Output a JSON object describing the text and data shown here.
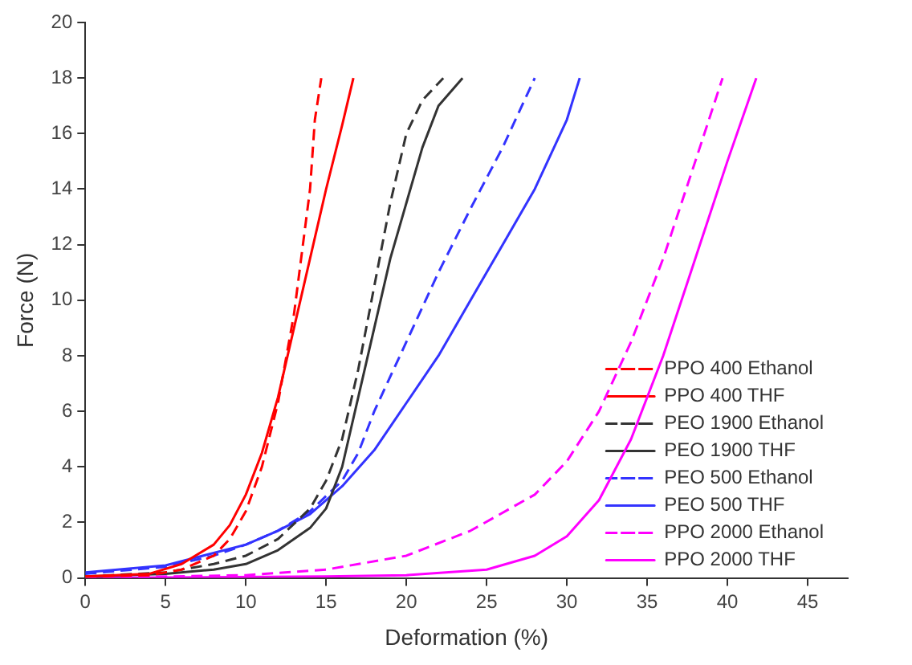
{
  "chart_data": {
    "type": "line",
    "xlabel": "Deformation (%)",
    "ylabel": "Force (N)",
    "xlim": [
      0,
      47.5
    ],
    "xticks": [
      0,
      5,
      10,
      15,
      20,
      25,
      30,
      35,
      40,
      45
    ],
    "ylim": [
      0,
      20
    ],
    "yticks": [
      0,
      2,
      4,
      6,
      8,
      10,
      12,
      14,
      16,
      18,
      20
    ],
    "grid": false,
    "legend": "bottom right",
    "marker": "none",
    "series": [
      {
        "name": "PPO 400 Ethanol",
        "color": "#ff0000",
        "line_style": "dashed",
        "x": [
          0,
          4,
          6,
          8,
          9,
          10,
          11,
          12,
          13,
          14,
          14.3,
          14.7
        ],
        "values": [
          0.05,
          0.1,
          0.3,
          0.8,
          1.4,
          2.4,
          4,
          6.3,
          9.5,
          14,
          16.5,
          18
        ]
      },
      {
        "name": "PPO 400 THF",
        "color": "#ff0000",
        "line_style": "solid",
        "x": [
          0,
          4,
          6,
          8,
          9,
          10,
          11,
          12,
          13,
          14,
          15,
          16,
          16.7
        ],
        "values": [
          0.05,
          0.15,
          0.5,
          1.2,
          1.9,
          3,
          4.5,
          6.5,
          9,
          11.5,
          14,
          16.3,
          18
        ]
      },
      {
        "name": "PEO 1900 Ethanol",
        "color": "#333333",
        "line_style": "dashed",
        "x": [
          0,
          5,
          8,
          10,
          12,
          14,
          15,
          16,
          17,
          18,
          19,
          20,
          21,
          22.3
        ],
        "values": [
          0.05,
          0.2,
          0.5,
          0.8,
          1.4,
          2.5,
          3.5,
          5,
          7.5,
          10.5,
          13.5,
          16,
          17.2,
          18
        ]
      },
      {
        "name": "PEO 1900 THF",
        "color": "#333333",
        "line_style": "solid",
        "x": [
          0,
          5,
          8,
          10,
          12,
          14,
          15,
          16,
          17,
          18,
          19,
          20,
          21,
          22,
          23.5
        ],
        "values": [
          0.05,
          0.15,
          0.3,
          0.5,
          1,
          1.8,
          2.5,
          4,
          6.5,
          9,
          11.5,
          13.5,
          15.5,
          17,
          18
        ]
      },
      {
        "name": "PEO 500 Ethanol",
        "color": "#3333ff",
        "line_style": "dashed",
        "x": [
          0,
          5,
          8,
          10,
          12,
          14,
          16,
          17,
          18,
          20,
          22,
          24,
          26,
          28
        ],
        "values": [
          0.15,
          0.4,
          0.8,
          1.2,
          1.7,
          2.4,
          3.5,
          4.5,
          6,
          8.5,
          11,
          13.3,
          15.5,
          18
        ]
      },
      {
        "name": "PEO 500 THF",
        "color": "#3333ff",
        "line_style": "solid",
        "x": [
          0,
          5,
          8,
          10,
          12,
          14,
          16,
          18,
          20,
          22,
          24,
          26,
          28,
          30,
          30.8
        ],
        "values": [
          0.2,
          0.45,
          0.9,
          1.2,
          1.7,
          2.3,
          3.3,
          4.6,
          6.3,
          8,
          10,
          12,
          14,
          16.5,
          18
        ]
      },
      {
        "name": "PPO 2000 Ethanol",
        "color": "#ff00ff",
        "line_style": "dashed",
        "x": [
          0,
          10,
          15,
          20,
          24,
          28,
          30,
          32,
          34,
          36,
          38,
          39.7
        ],
        "values": [
          0,
          0.1,
          0.3,
          0.8,
          1.7,
          3,
          4.2,
          6,
          8.5,
          11.5,
          15,
          18
        ]
      },
      {
        "name": "PPO 2000 THF",
        "color": "#ff00ff",
        "line_style": "solid",
        "x": [
          0,
          15,
          20,
          25,
          28,
          30,
          32,
          34,
          36,
          38,
          40,
          41.8
        ],
        "values": [
          0,
          0.05,
          0.1,
          0.3,
          0.8,
          1.5,
          2.8,
          5,
          8,
          11.5,
          15,
          18
        ]
      }
    ]
  }
}
